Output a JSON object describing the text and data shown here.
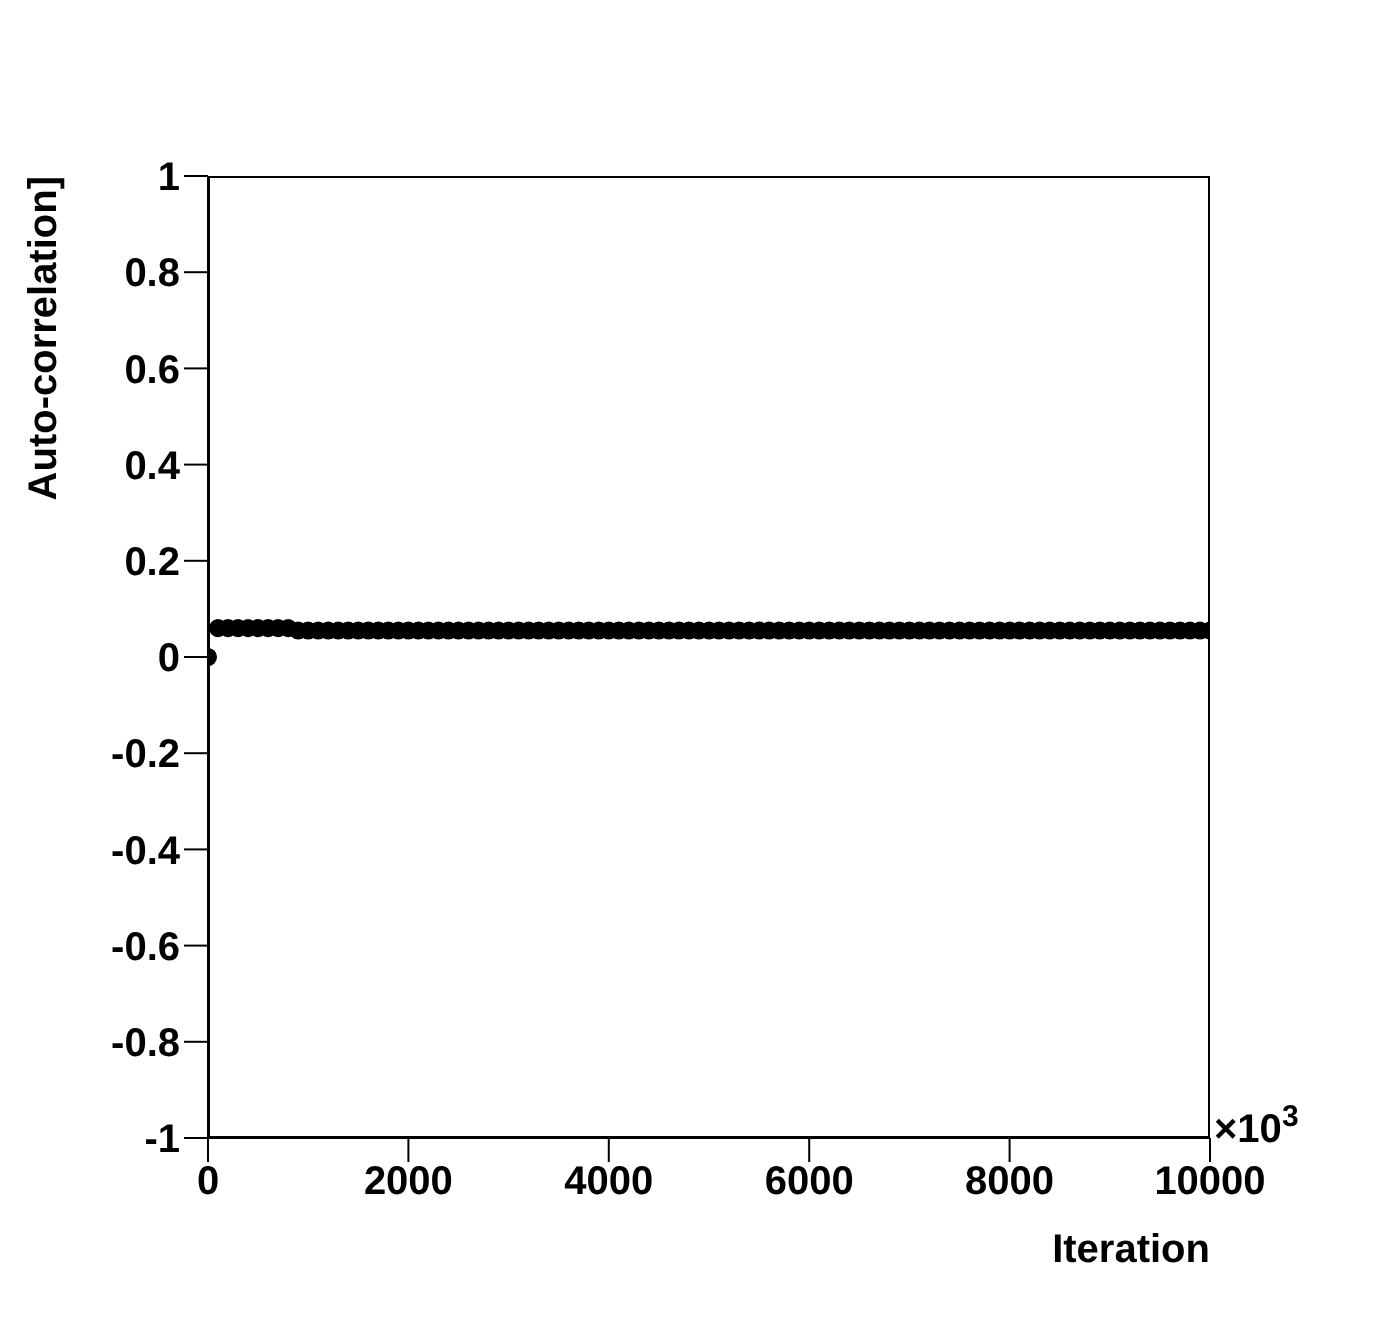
{
  "chart_data": {
    "type": "scatter",
    "xlabel": "Iteration",
    "ylabel": "Auto-correlation]",
    "annotations": [
      "×10$^{3}$"
    ],
    "x": [
      0,
      100,
      200,
      300,
      400,
      500,
      600,
      700,
      800,
      900,
      1000,
      1100,
      1200,
      1300,
      1400,
      1500,
      1600,
      1700,
      1800,
      1900,
      2000,
      2100,
      2200,
      2300,
      2400,
      2500,
      2600,
      2700,
      2800,
      2900,
      3000,
      3100,
      3200,
      3300,
      3400,
      3500,
      3600,
      3700,
      3800,
      3900,
      4000,
      4100,
      4200,
      4300,
      4400,
      4500,
      4600,
      4700,
      4800,
      4900,
      5000,
      5100,
      5200,
      5300,
      5400,
      5500,
      5600,
      5700,
      5800,
      5900,
      6000,
      6100,
      6200,
      6300,
      6400,
      6500,
      6600,
      6700,
      6800,
      6900,
      7000,
      7100,
      7200,
      7300,
      7400,
      7500,
      7600,
      7700,
      7800,
      7900,
      8000,
      8100,
      8200,
      8300,
      8400,
      8500,
      8600,
      8700,
      8800,
      8900,
      9000,
      9100,
      9200,
      9300,
      9400,
      9500,
      9600,
      9700,
      9800,
      9900,
      10000
    ],
    "series": [
      {
        "color": "#000000",
        "values": [
          0,
          0.06,
          0.06,
          0.06,
          0.06,
          0.06,
          0.06,
          0.06,
          0.06,
          0.055,
          0.055,
          0.055,
          0.055,
          0.055,
          0.055,
          0.055,
          0.055,
          0.055,
          0.055,
          0.055,
          0.055,
          0.055,
          0.055,
          0.055,
          0.055,
          0.055,
          0.055,
          0.055,
          0.055,
          0.055,
          0.055,
          0.055,
          0.055,
          0.055,
          0.055,
          0.055,
          0.055,
          0.055,
          0.055,
          0.055,
          0.055,
          0.055,
          0.055,
          0.055,
          0.055,
          0.055,
          0.055,
          0.055,
          0.055,
          0.055,
          0.055,
          0.055,
          0.055,
          0.055,
          0.055,
          0.055,
          0.055,
          0.055,
          0.055,
          0.055,
          0.055,
          0.055,
          0.055,
          0.055,
          0.055,
          0.055,
          0.055,
          0.055,
          0.055,
          0.055,
          0.055,
          0.055,
          0.055,
          0.055,
          0.055,
          0.055,
          0.055,
          0.055,
          0.055,
          0.055,
          0.055,
          0.055,
          0.055,
          0.055,
          0.055,
          0.055,
          0.055,
          0.055,
          0.055,
          0.055,
          0.055,
          0.055,
          0.055,
          0.055,
          0.055,
          0.055,
          0.055,
          0.055,
          0.055,
          0.055,
          0.055
        ]
      }
    ],
    "marker": "circle",
    "grid": false,
    "xlim": [
      0,
      10000
    ],
    "xticks": [
      0,
      2000,
      4000,
      6000,
      8000,
      10000
    ],
    "ylim": [
      -1,
      1
    ],
    "yticks": [
      -1,
      -0.8,
      -0.6,
      -0.4,
      -0.2,
      0,
      0.2,
      0.4,
      0.6,
      0.8,
      1
    ]
  }
}
